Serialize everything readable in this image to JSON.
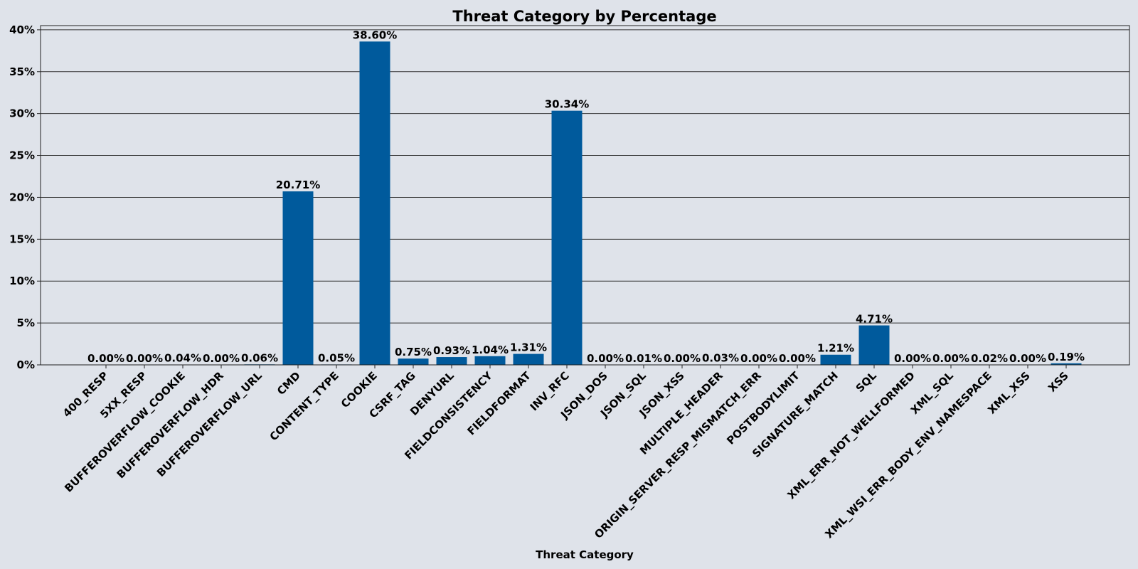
{
  "chart_data": {
    "type": "bar",
    "title": "Threat Category by Percentage",
    "xlabel": "Threat Category",
    "ylabel": "",
    "ylim": [
      0,
      40.5
    ],
    "yticks": [
      0,
      5,
      10,
      15,
      20,
      25,
      30,
      35,
      40
    ],
    "ytick_labels": [
      "0%",
      "5%",
      "10%",
      "15%",
      "20%",
      "25%",
      "30%",
      "35%",
      "40%"
    ],
    "grid": true,
    "bar_color": "#005a9c",
    "categories": [
      "400_RESP",
      "5XX_RESP",
      "BUFFEROVERFLOW_COOKIE",
      "BUFFEROVERFLOW_HDR",
      "BUFFEROVERFLOW_URL",
      "CMD",
      "CONTENT_TYPE",
      "COOKIE",
      "CSRF_TAG",
      "DENYURL",
      "FIELDCONSISTENCY",
      "FIELDFORMAT",
      "INV_RFC",
      "JSON_DOS",
      "JSON_SQL",
      "JSON_XSS",
      "MULTIPLE_HEADER",
      "ORIGIN_SERVER_RESP_MISMATCH_ERR",
      "POSTBODYLIMIT",
      "SIGNATURE_MATCH",
      "SQL",
      "XML_ERR_NOT_WELLFORMED",
      "XML_SQL",
      "XML_WSI_ERR_BODY_ENV_NAMESPACE",
      "XML_XSS",
      "XSS"
    ],
    "values": [
      0.0,
      0.0,
      0.04,
      0.0,
      0.06,
      20.71,
      0.05,
      38.6,
      0.75,
      0.93,
      1.04,
      1.31,
      30.34,
      0.0,
      0.01,
      0.0,
      0.03,
      0.0,
      0.0,
      1.21,
      4.71,
      0.0,
      0.0,
      0.02,
      0.0,
      0.19
    ],
    "data_labels": [
      "0.00%",
      "0.00%",
      "0.04%",
      "0.00%",
      "0.06%",
      "20.71%",
      "0.05%",
      "38.60%",
      "0.75%",
      "0.93%",
      "1.04%",
      "1.31%",
      "30.34%",
      "0.00%",
      "0.01%",
      "0.00%",
      "0.03%",
      "0.00%",
      "0.00%",
      "1.21%",
      "4.71%",
      "0.00%",
      "0.00%",
      "0.02%",
      "0.00%",
      "0.19%"
    ]
  }
}
